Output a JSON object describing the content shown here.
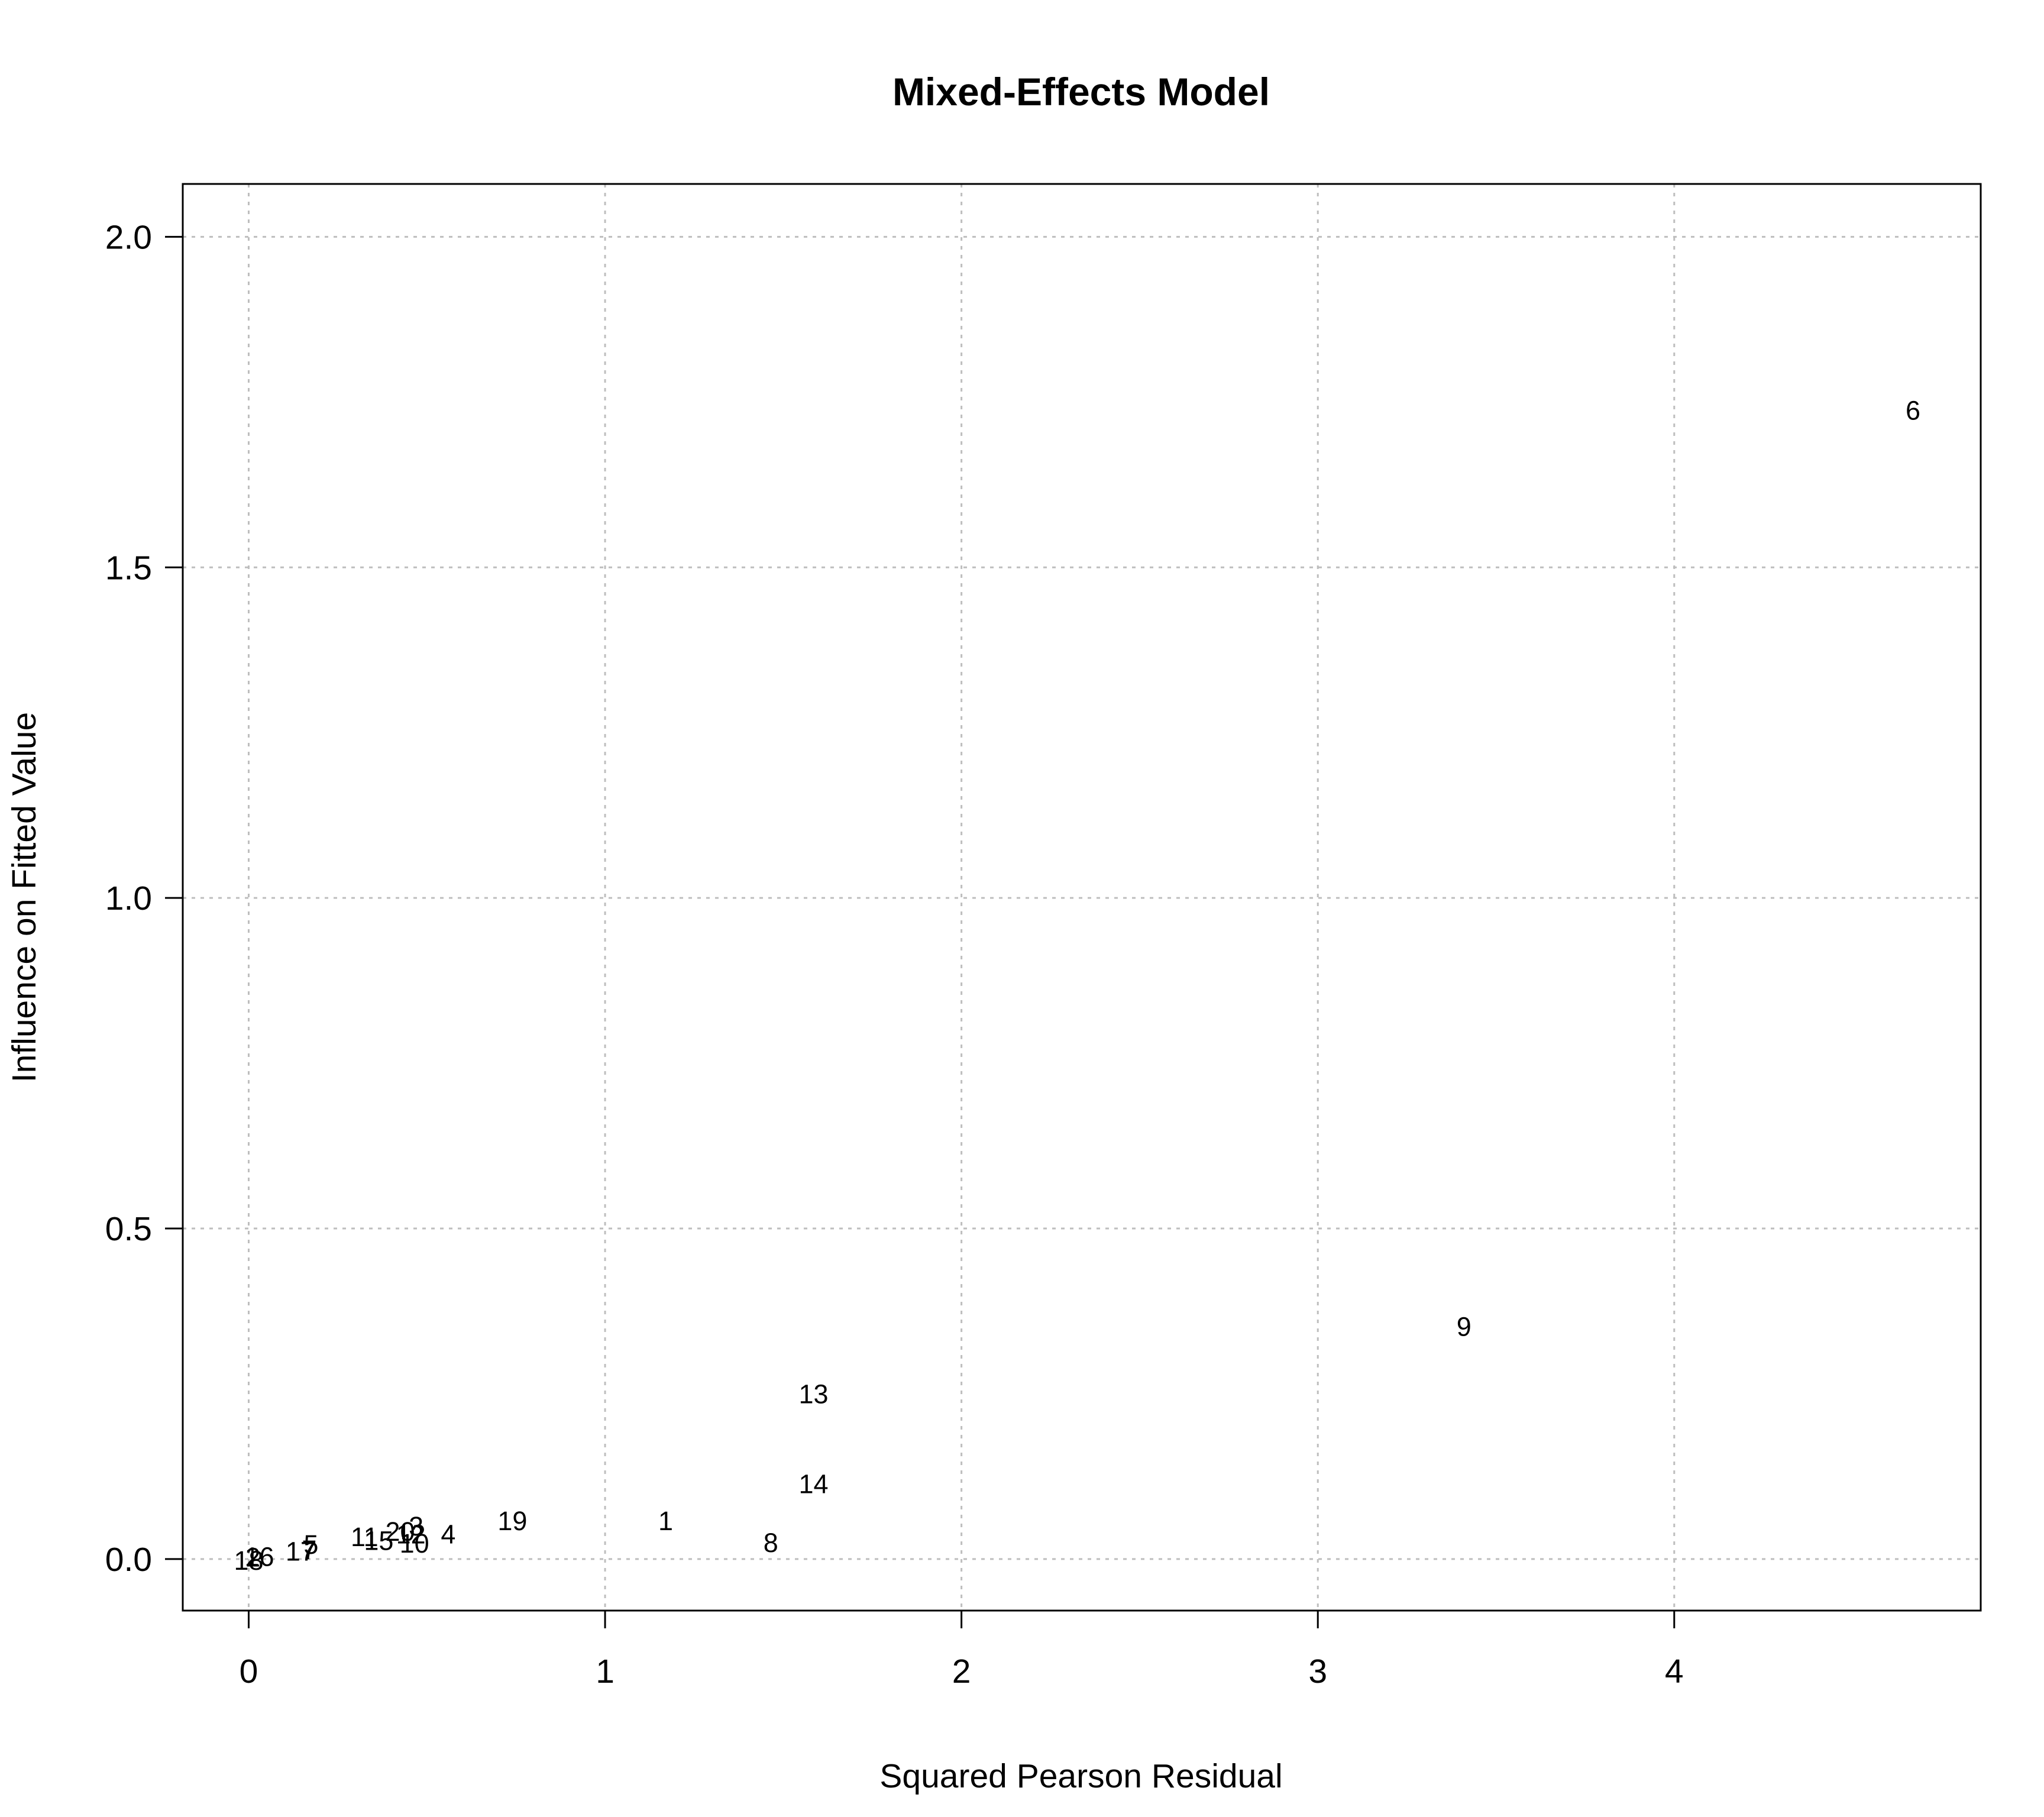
{
  "chart_data": {
    "type": "scatter",
    "marker": "text-labels",
    "title": "Mixed-Effects Model",
    "xlabel": "Squared Pearson Residual",
    "ylabel": "Influence on Fitted Value",
    "xlim": [
      -0.185,
      4.86
    ],
    "ylim": [
      -0.078,
      2.08
    ],
    "xticks": [
      0,
      1,
      2,
      3,
      4
    ],
    "xtick_labels": [
      "0",
      "1",
      "2",
      "3",
      "4"
    ],
    "yticks": [
      0.0,
      0.5,
      1.0,
      1.5,
      2.0
    ],
    "ytick_labels": [
      "0.0",
      "0.5",
      "1.0",
      "1.5",
      "2.0"
    ],
    "grid": true,
    "points": [
      {
        "label": "6",
        "x": 4.67,
        "y": 1.738
      },
      {
        "label": "9",
        "x": 3.41,
        "y": 0.352
      },
      {
        "label": "13",
        "x": 1.585,
        "y": 0.25
      },
      {
        "label": "14",
        "x": 1.585,
        "y": 0.114
      },
      {
        "label": "1",
        "x": 1.17,
        "y": 0.058
      },
      {
        "label": "8",
        "x": 1.465,
        "y": 0.025
      },
      {
        "label": "19",
        "x": 0.74,
        "y": 0.058
      },
      {
        "label": "4",
        "x": 0.56,
        "y": 0.038
      },
      {
        "label": "3",
        "x": 0.47,
        "y": 0.05
      },
      {
        "label": "20",
        "x": 0.425,
        "y": 0.042
      },
      {
        "label": "12",
        "x": 0.455,
        "y": 0.038
      },
      {
        "label": "10",
        "x": 0.465,
        "y": 0.024
      },
      {
        "label": "15",
        "x": 0.365,
        "y": 0.028
      },
      {
        "label": "11",
        "x": 0.325,
        "y": 0.034
      },
      {
        "label": "7",
        "x": 0.17,
        "y": 0.014
      },
      {
        "label": "5",
        "x": 0.175,
        "y": 0.022
      },
      {
        "label": "17",
        "x": 0.145,
        "y": 0.012
      },
      {
        "label": "16",
        "x": 0.03,
        "y": 0.004
      },
      {
        "label": "18",
        "x": 0.0,
        "y": -0.002
      },
      {
        "label": "2",
        "x": 0.012,
        "y": 0.003
      }
    ]
  }
}
